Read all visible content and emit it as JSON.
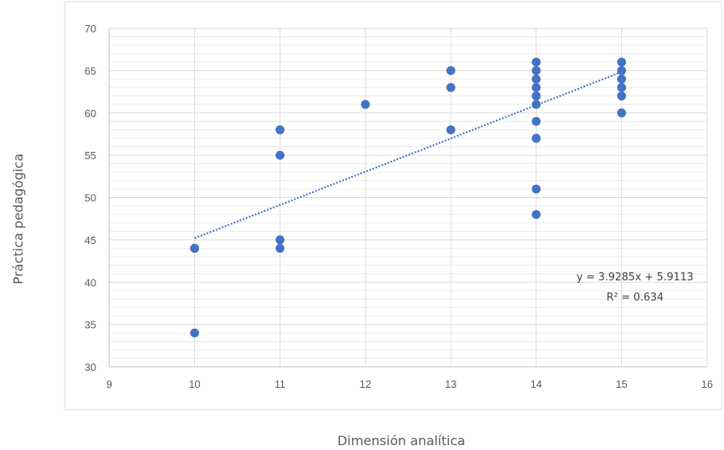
{
  "chart_data": {
    "type": "scatter",
    "xlabel": "Dimensión analítica",
    "ylabel": "Práctica pedagógica",
    "xlim": [
      9,
      16
    ],
    "ylim": [
      30,
      70
    ],
    "x_ticks": [
      9,
      10,
      11,
      12,
      13,
      14,
      15,
      16
    ],
    "y_ticks": [
      30,
      35,
      40,
      45,
      50,
      55,
      60,
      65,
      70
    ],
    "grid": true,
    "legend": "none",
    "colors": {
      "point": "#4472c4",
      "trendline": "#4472c4",
      "grid": "#d9d9d9",
      "axis": "#bfbfbf",
      "text": "#595959"
    },
    "series": [
      {
        "points": [
          [
            10,
            44
          ],
          [
            10,
            44
          ],
          [
            10,
            34
          ],
          [
            11,
            58
          ],
          [
            11,
            55
          ],
          [
            11,
            45
          ],
          [
            11,
            44
          ],
          [
            12,
            61
          ],
          [
            13,
            65
          ],
          [
            13,
            63
          ],
          [
            13,
            58
          ],
          [
            14,
            66
          ],
          [
            14,
            65
          ],
          [
            14,
            64
          ],
          [
            14,
            63
          ],
          [
            14,
            62
          ],
          [
            14,
            61
          ],
          [
            14,
            59
          ],
          [
            14,
            57
          ],
          [
            14,
            51
          ],
          [
            14,
            48
          ],
          [
            15,
            66
          ],
          [
            15,
            65
          ],
          [
            15,
            64
          ],
          [
            15,
            63
          ],
          [
            15,
            62
          ],
          [
            15,
            60
          ]
        ]
      }
    ],
    "trendline": {
      "type": "linear",
      "slope": 3.9285,
      "intercept": 5.9113,
      "x_range": [
        10,
        15
      ],
      "equation": "y = 3.9285x + 5.9113",
      "r2": "R² = 0.634"
    }
  }
}
